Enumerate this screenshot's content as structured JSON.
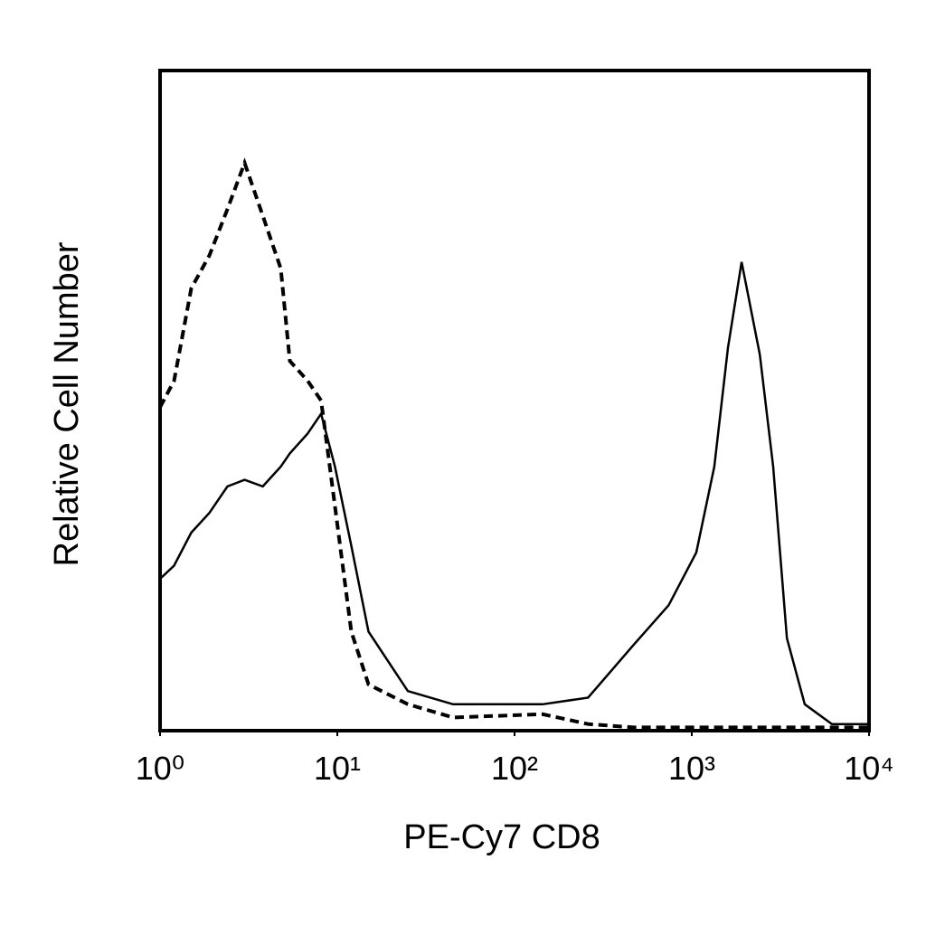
{
  "chart_data": {
    "type": "line",
    "xlabel": "PE-Cy7 CD8",
    "ylabel": "Relative Cell Number",
    "xscale": "log",
    "xlim": [
      1,
      10000
    ],
    "xticks": [
      {
        "value": 1,
        "label": "10⁰"
      },
      {
        "value": 10,
        "label": "10¹"
      },
      {
        "value": 100,
        "label": "10²"
      },
      {
        "value": 1000,
        "label": "10³"
      },
      {
        "value": 10000,
        "label": "10⁴"
      }
    ],
    "ylim": [
      0,
      100
    ],
    "x": [
      1,
      1.2,
      1.5,
      1.9,
      2.4,
      3,
      3.8,
      4.8,
      5.4,
      6.8,
      8.1,
      9.7,
      12,
      15,
      25,
      45,
      144,
      260,
      470,
      740,
      1060,
      1340,
      1600,
      1910,
      2420,
      2880,
      3440,
      4340,
      6180,
      9900
    ],
    "series": [
      {
        "color": "#000000",
        "dashed": false,
        "values": [
          23,
          25,
          30,
          33,
          37,
          38,
          37,
          40,
          42,
          45,
          48,
          40,
          28,
          15,
          6,
          4,
          4,
          5,
          13,
          19,
          27,
          40,
          58,
          71,
          57,
          40,
          14,
          4,
          1,
          1
        ]
      },
      {
        "color": "#000000",
        "dashed": true,
        "values": [
          49,
          53,
          67,
          72,
          79,
          86,
          78,
          70,
          56,
          53,
          50,
          34,
          15,
          7,
          4,
          2,
          2.5,
          1,
          0.5,
          0.5,
          0.5,
          0.5,
          0.5,
          0.5,
          0.5,
          0.5,
          0.5,
          0.5,
          0.5,
          0.5
        ]
      }
    ]
  }
}
